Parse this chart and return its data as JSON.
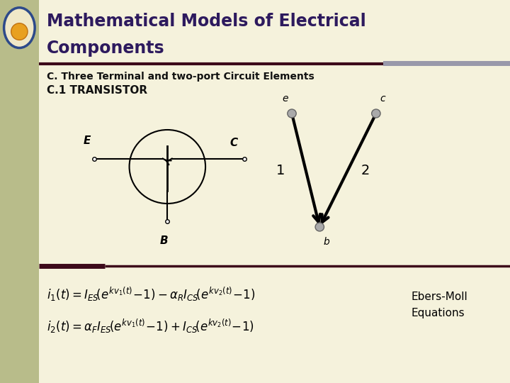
{
  "bg_color": "#f5f2dc",
  "left_bar_color": "#b8bc8a",
  "title_text1": "Mathematical Models of Electrical",
  "title_text2": "Components",
  "title_color": "#2d1a5e",
  "header_line_color": "#3d0a1a",
  "subtitle1": "C. Three Terminal and two-port Circuit Elements",
  "subtitle2": "C.1 TRANSISTOR",
  "subtitle_color": "#111111",
  "ebers_moll": "Ebers-Moll\nEquations",
  "accent_bar_color": "#9999aa",
  "logo_color": "#2d4a8a"
}
